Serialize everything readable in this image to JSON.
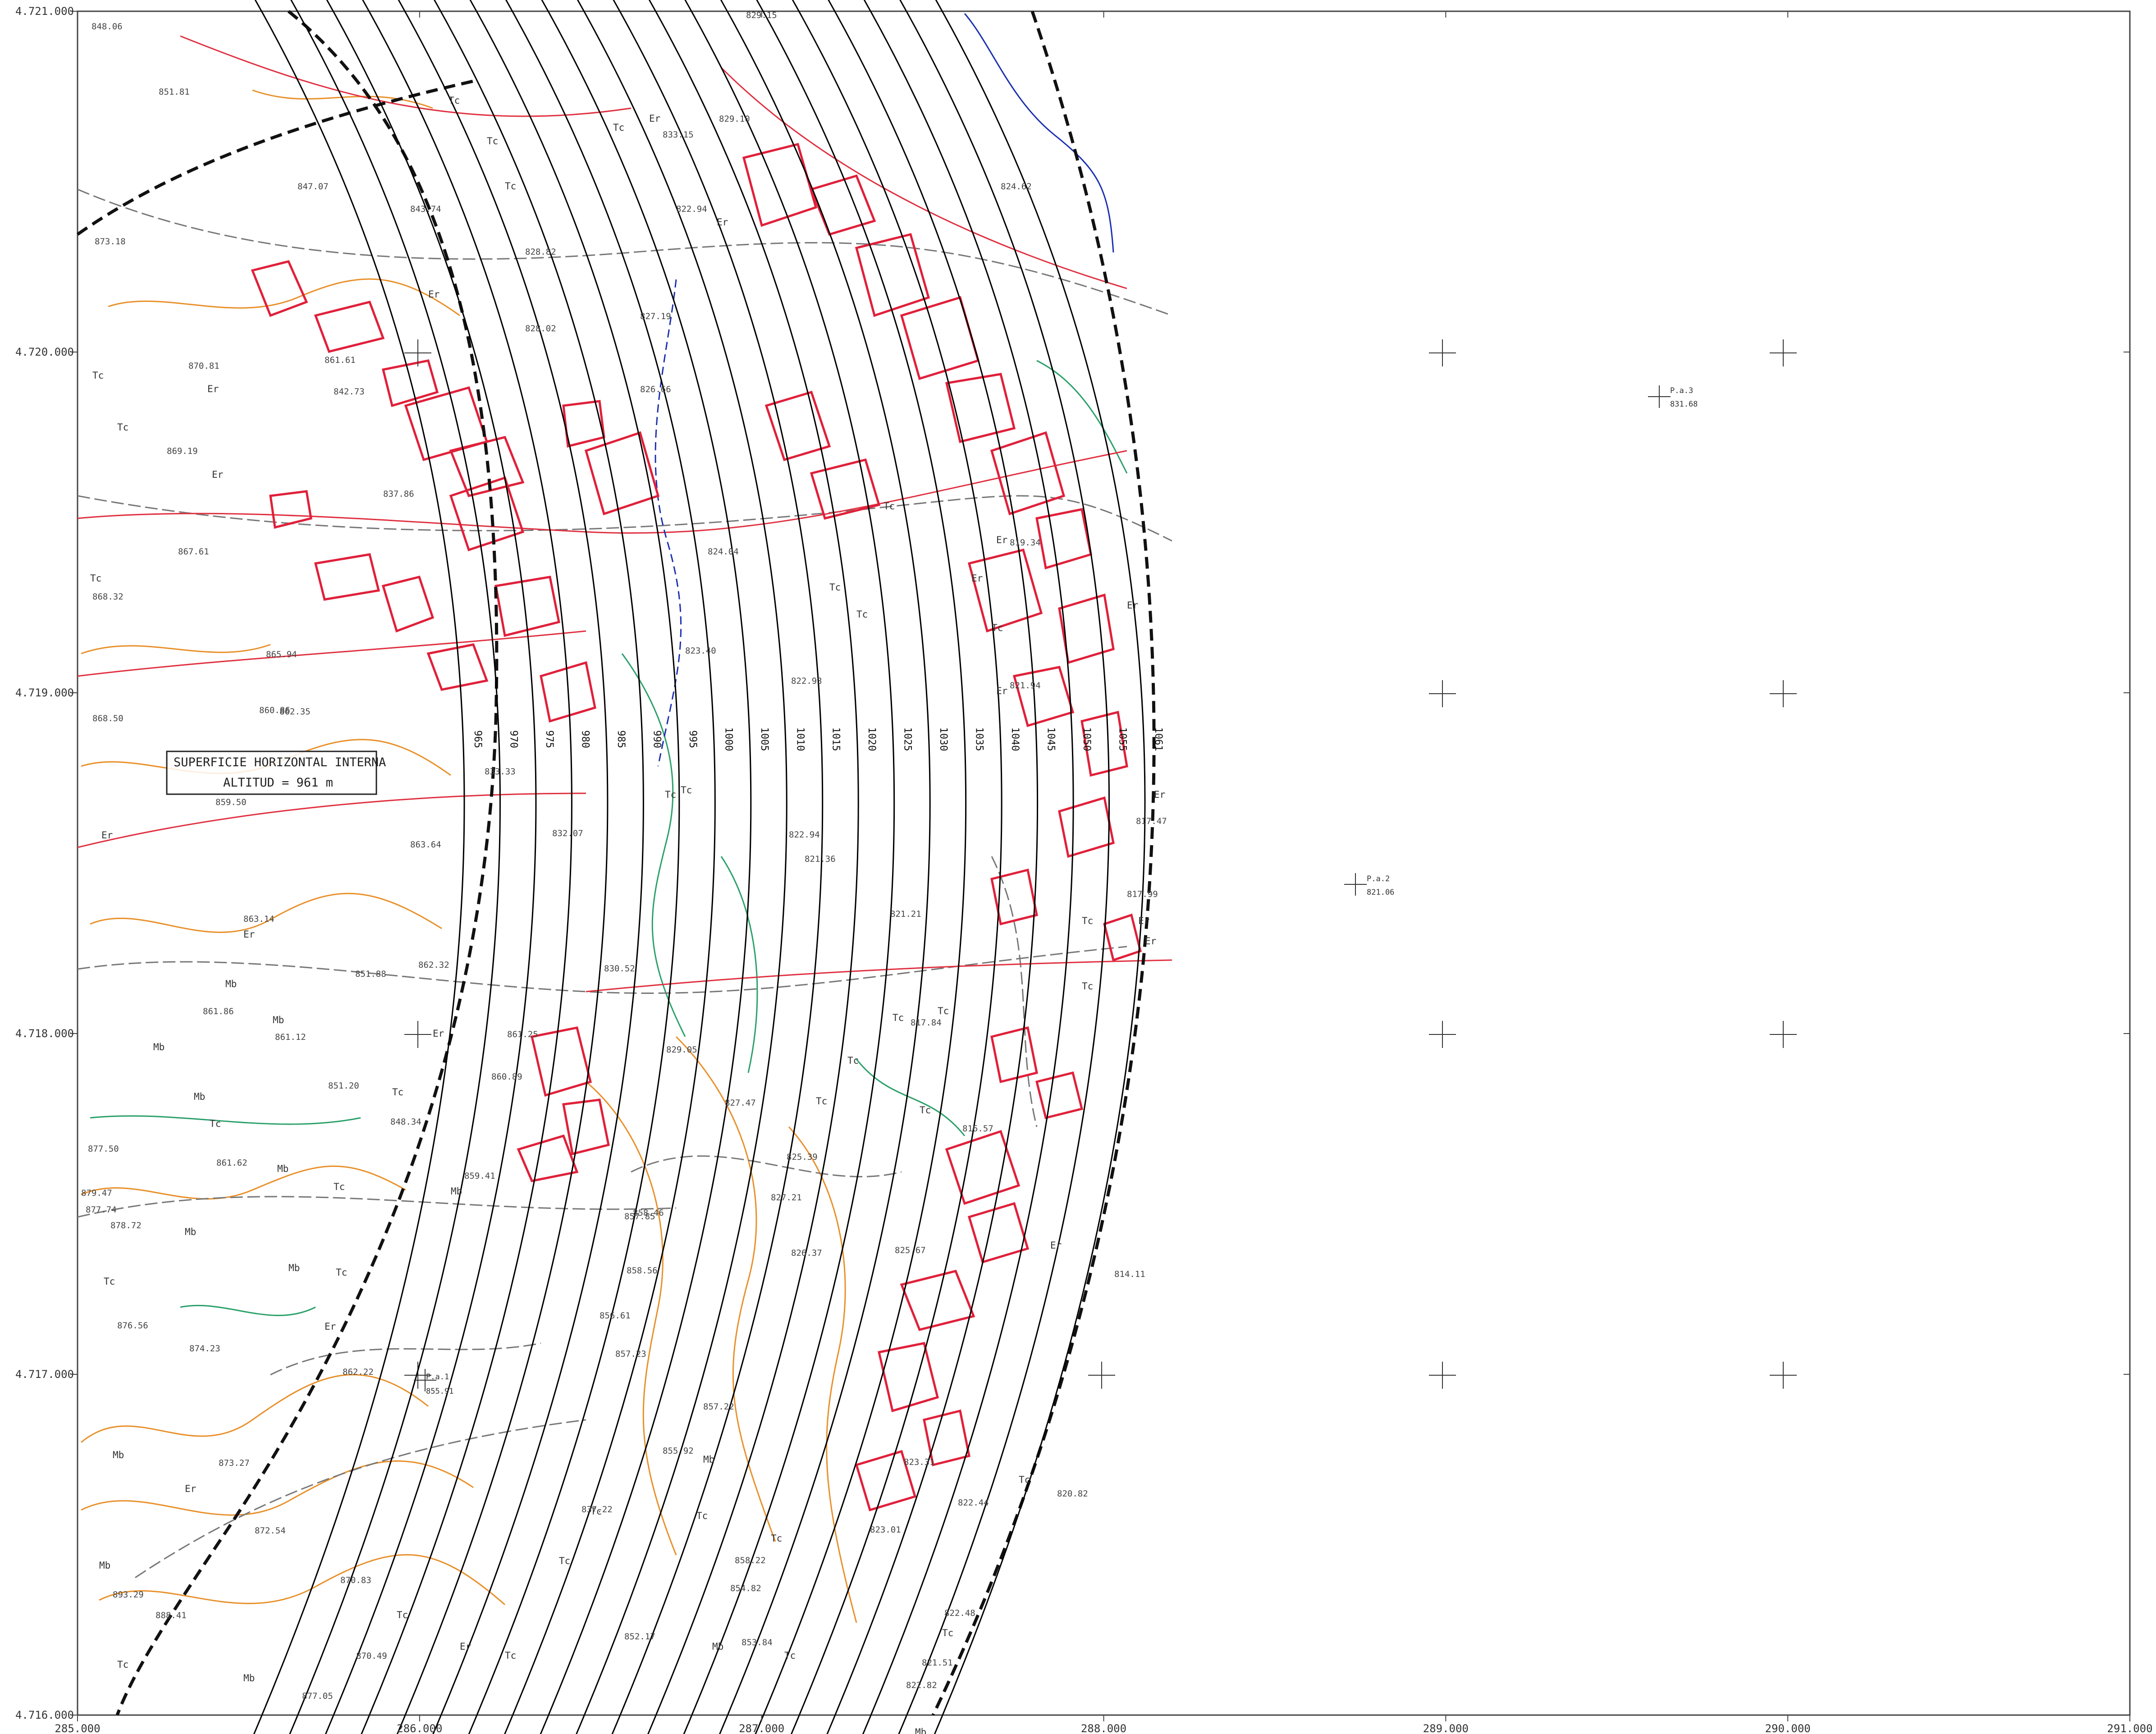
{
  "map": {
    "x_ticks": [
      "285.000",
      "286.000",
      "287.000",
      "288.000",
      "289.000",
      "290.000",
      "291.000"
    ],
    "y_ticks": [
      "4.721.000",
      "4.720.000",
      "4.719.000",
      "4.718.000",
      "4.717.000",
      "4.716.000"
    ],
    "callout": {
      "line1": "SUPERFICIE HORIZONTAL INTERNA",
      "line2": "ALTITUD = 961 m"
    },
    "contours": [
      "965",
      "970",
      "975",
      "980",
      "985",
      "990",
      "995",
      "1000",
      "1005",
      "1010",
      "1015",
      "1020",
      "1025",
      "1030",
      "1035",
      "1040",
      "1045",
      "1050",
      "1055",
      "1061"
    ],
    "landuse": [
      "Er",
      "Tc",
      "Mb"
    ],
    "points": [
      {
        "name": "P.a.3",
        "elev": "831.68"
      },
      {
        "name": "P.a.2",
        "elev": "821.06"
      },
      {
        "name": "P.a.1",
        "elev": "855.91"
      }
    ],
    "elevations": [
      "848.06",
      "851.81",
      "847.07",
      "873.18",
      "843.74",
      "870.81",
      "869.19",
      "867.61",
      "868.32",
      "865.94",
      "868.50",
      "862.35",
      "860.86",
      "859.50",
      "863.64",
      "863.14",
      "861.86",
      "861.12",
      "851.20",
      "877.50",
      "861.62",
      "879.47",
      "877.74",
      "878.72",
      "876.56",
      "874.23",
      "873.27",
      "872.54",
      "870.83",
      "893.29",
      "888.41",
      "877.05",
      "870.49",
      "862.22",
      "861.61",
      "842.73",
      "837.86",
      "828.82",
      "828.02",
      "827.19",
      "826.66",
      "824.04",
      "823.40",
      "822.93",
      "822.94",
      "821.36",
      "821.21",
      "821.94",
      "819.34",
      "817.84",
      "816.57",
      "817.47",
      "817.99",
      "814.11",
      "825.67",
      "827.21",
      "826.37",
      "823.31",
      "823.01",
      "822.44",
      "822.48",
      "821.51",
      "822.82",
      "858.56",
      "857.85",
      "856.61",
      "857.23",
      "857.22",
      "855.92",
      "858.22",
      "854.82",
      "853.84",
      "852.17",
      "837.22",
      "858.46",
      "859.41",
      "848.34",
      "860.89",
      "861.25",
      "851.88",
      "862.32",
      "833.33",
      "832.07",
      "830.52",
      "829.05",
      "827.47",
      "825.39",
      "820.82",
      "822.94",
      "833.15",
      "829.10",
      "829.15",
      "824.62"
    ]
  }
}
